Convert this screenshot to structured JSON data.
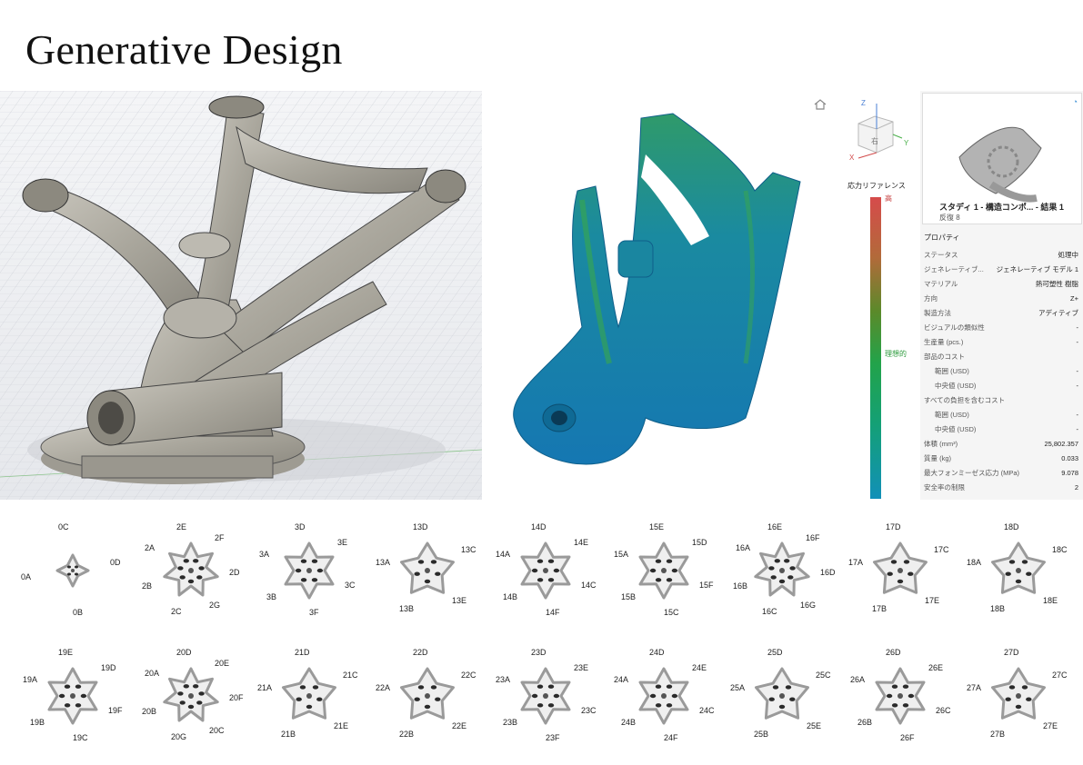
{
  "page_title": "Generative Design",
  "legend": {
    "title": "応力リファレンス",
    "high": "高",
    "ideal": "理想的"
  },
  "viewcube": {
    "face": "右",
    "z": "Z",
    "x": "X",
    "y": "Y"
  },
  "study": {
    "title": "スタディ 1 - 構造コンポ... - 結果 1",
    "subtitle": "反復 8"
  },
  "properties": {
    "heading": "プロパティ",
    "rows": [
      {
        "label": "ステータス",
        "value": "処理中",
        "indent": false
      },
      {
        "label": "ジェネレーティブ...",
        "value": "ジェネレーティブ モデル 1",
        "indent": false
      },
      {
        "label": "マテリアル",
        "value": "熱可塑性 樹脂",
        "indent": false
      },
      {
        "label": "方向",
        "value": "Z+",
        "indent": false
      },
      {
        "label": "製造方法",
        "value": "アディティブ",
        "indent": false
      },
      {
        "label": "ビジュアルの類似性",
        "value": "-",
        "indent": false
      },
      {
        "label": "生産量 (pcs.)",
        "value": "-",
        "indent": false
      },
      {
        "label": "部品のコスト",
        "value": "",
        "indent": false
      },
      {
        "label": "範囲 (USD)",
        "value": "-",
        "indent": true
      },
      {
        "label": "中央値 (USD)",
        "value": "-",
        "indent": true
      },
      {
        "label": "すべての負担を含むコスト",
        "value": "",
        "indent": false
      },
      {
        "label": "範囲 (USD)",
        "value": "-",
        "indent": true
      },
      {
        "label": "中央値 (USD)",
        "value": "-",
        "indent": true
      },
      {
        "label": "体積 (mm³)",
        "value": "25,802.357",
        "indent": false
      },
      {
        "label": "質量 (kg)",
        "value": "0.033",
        "indent": false
      },
      {
        "label": "最大フォンミーゼス応力 (MPa)",
        "value": "9.078",
        "indent": false
      },
      {
        "label": "安全率の制限",
        "value": "2",
        "indent": false
      }
    ]
  },
  "samples": [
    {
      "id": "0",
      "labels": [
        "0C",
        "0D",
        "0B",
        "0A"
      ],
      "arms": 4
    },
    {
      "id": "2",
      "labels": [
        "2E",
        "2F",
        "2D",
        "2G",
        "2C",
        "2B",
        "2A"
      ],
      "arms": 7
    },
    {
      "id": "3",
      "labels": [
        "3D",
        "3E",
        "3C",
        "3F",
        "3B",
        "3A"
      ],
      "arms": 6
    },
    {
      "id": "13",
      "labels": [
        "13D",
        "13C",
        "13E",
        "13B",
        "13A"
      ],
      "arms": 5
    },
    {
      "id": "14",
      "labels": [
        "14D",
        "14E",
        "14C",
        "14F",
        "14B",
        "14A"
      ],
      "arms": 6
    },
    {
      "id": "15",
      "labels": [
        "15E",
        "15D",
        "15F",
        "15C",
        "15B",
        "15A"
      ],
      "arms": 6
    },
    {
      "id": "16",
      "labels": [
        "16E",
        "16F",
        "16D",
        "16G",
        "16C",
        "16B",
        "16A"
      ],
      "arms": 7
    },
    {
      "id": "17",
      "labels": [
        "17D",
        "17C",
        "17E",
        "17B",
        "17A"
      ],
      "arms": 5
    },
    {
      "id": "18",
      "labels": [
        "18D",
        "18C",
        "18E",
        "18B",
        "18A"
      ],
      "arms": 5
    },
    {
      "id": "19",
      "labels": [
        "19E",
        "19D",
        "19F",
        "19C",
        "19B",
        "19A"
      ],
      "arms": 6
    },
    {
      "id": "20",
      "labels": [
        "20D",
        "20E",
        "20F",
        "20C",
        "20G",
        "20B",
        "20A"
      ],
      "arms": 7
    },
    {
      "id": "21",
      "labels": [
        "21D",
        "21C",
        "21E",
        "21B",
        "21A"
      ],
      "arms": 5
    },
    {
      "id": "22",
      "labels": [
        "22D",
        "22C",
        "22E",
        "22B",
        "22A"
      ],
      "arms": 5
    },
    {
      "id": "23",
      "labels": [
        "23D",
        "23E",
        "23C",
        "23F",
        "23B",
        "23A"
      ],
      "arms": 6
    },
    {
      "id": "24",
      "labels": [
        "24D",
        "24E",
        "24C",
        "24F",
        "24B",
        "24A"
      ],
      "arms": 6
    },
    {
      "id": "25",
      "labels": [
        "25D",
        "25C",
        "25E",
        "25B",
        "25A"
      ],
      "arms": 5
    },
    {
      "id": "26",
      "labels": [
        "26D",
        "26E",
        "26C",
        "26F",
        "26B",
        "26A"
      ],
      "arms": 6
    },
    {
      "id": "27",
      "labels": [
        "27D",
        "27C",
        "27E",
        "27B",
        "27A"
      ],
      "arms": 5
    }
  ]
}
